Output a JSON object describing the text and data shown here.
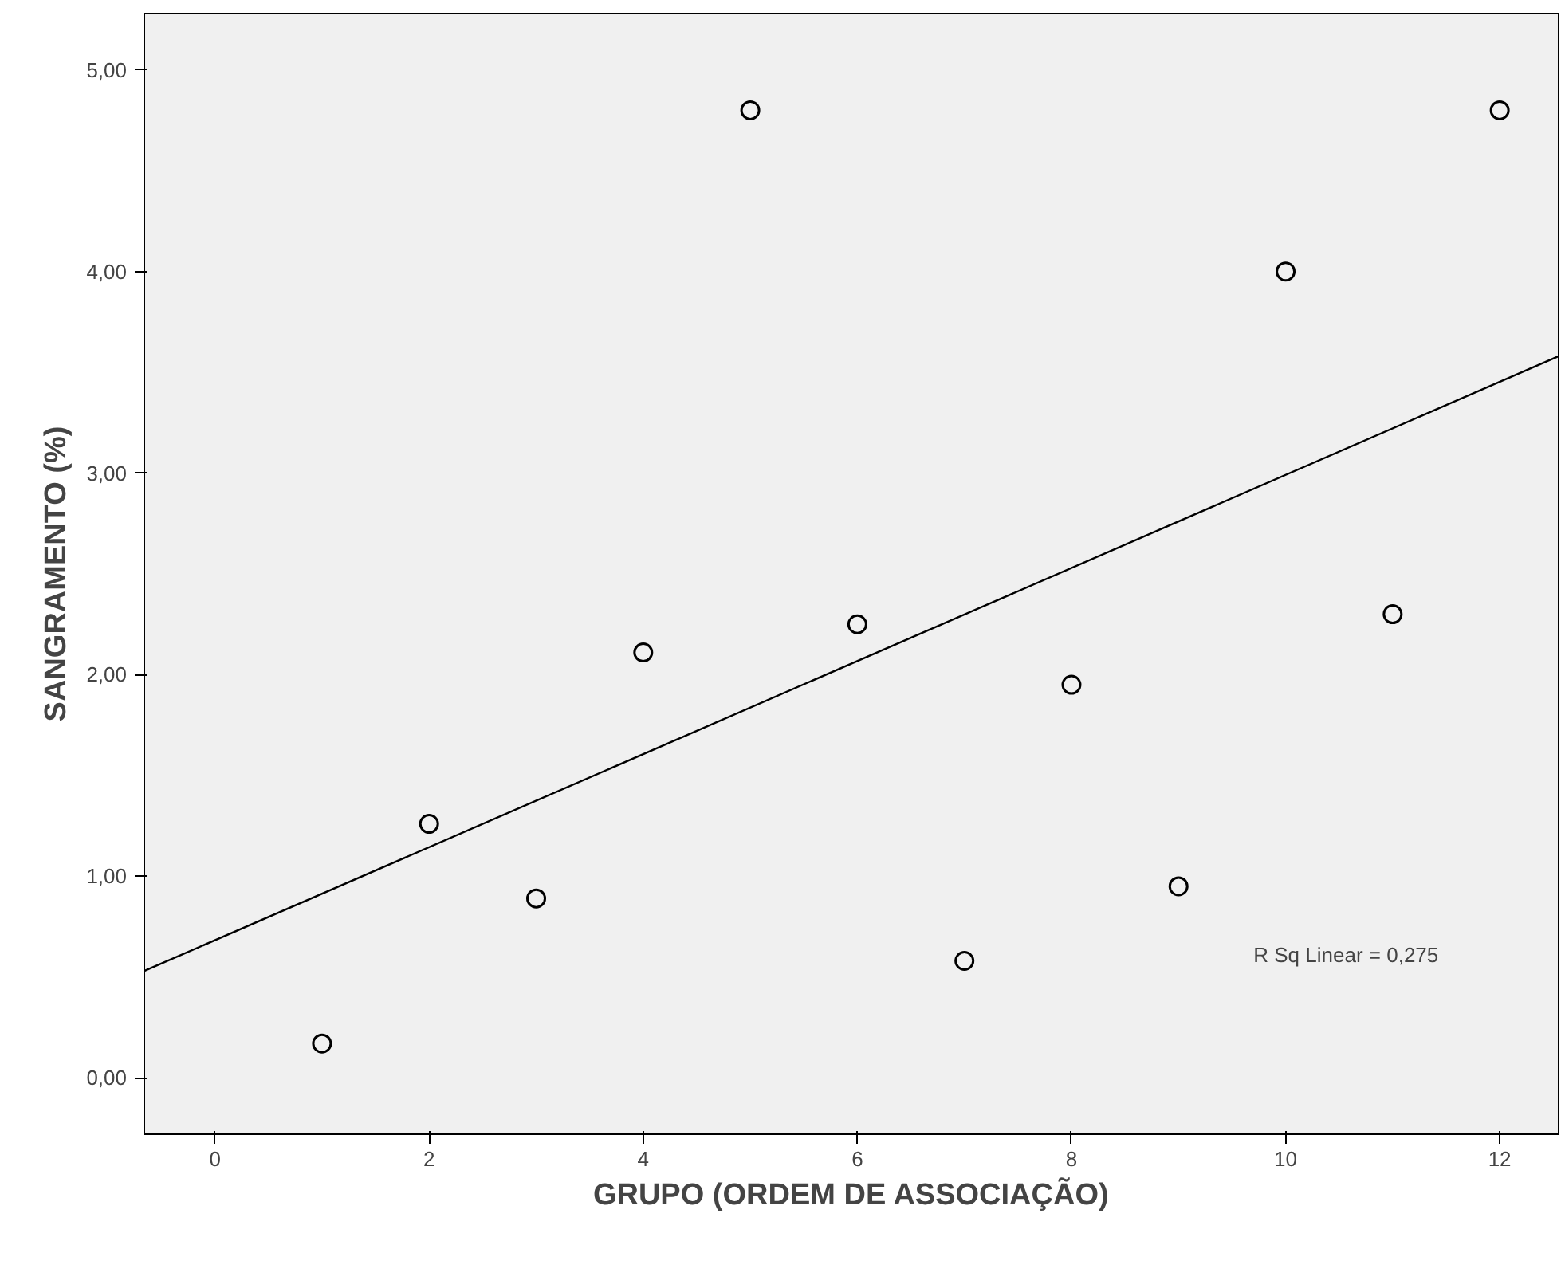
{
  "chart_data": {
    "type": "scatter",
    "xlabel": "GRUPO (ORDEM DE ASSOCIAÇÃO)",
    "ylabel": "SANGRAMENTO (%)",
    "x": [
      1,
      2,
      3,
      4,
      5,
      6,
      7,
      8,
      9,
      10,
      11,
      12
    ],
    "series": [
      {
        "color": "#000000",
        "marker": "circle",
        "values": [
          0.17,
          1.26,
          0.89,
          2.11,
          4.8,
          2.25,
          0.58,
          1.95,
          0.95,
          4.0,
          2.3,
          4.8
        ]
      },
      {
        "type": "line",
        "marker": "none",
        "color": "#000000",
        "x": [
          -0.66,
          12.55
        ],
        "values": [
          0.53,
          3.58
        ]
      }
    ],
    "xlim": [
      -0.66,
      12.55
    ],
    "ylim": [
      -0.28,
      5.28
    ],
    "xticks": [
      0,
      2,
      4,
      6,
      8,
      10,
      12
    ],
    "yticks": [
      {
        "value": 0,
        "label": "0,00"
      },
      {
        "value": 1,
        "label": "1,00"
      },
      {
        "value": 2,
        "label": "2,00"
      },
      {
        "value": 3,
        "label": "3,00"
      },
      {
        "value": 4,
        "label": "4,00"
      },
      {
        "value": 5,
        "label": "5,00"
      }
    ],
    "grid": false,
    "annotations": [
      "R Sq Linear = 0,275"
    ]
  }
}
